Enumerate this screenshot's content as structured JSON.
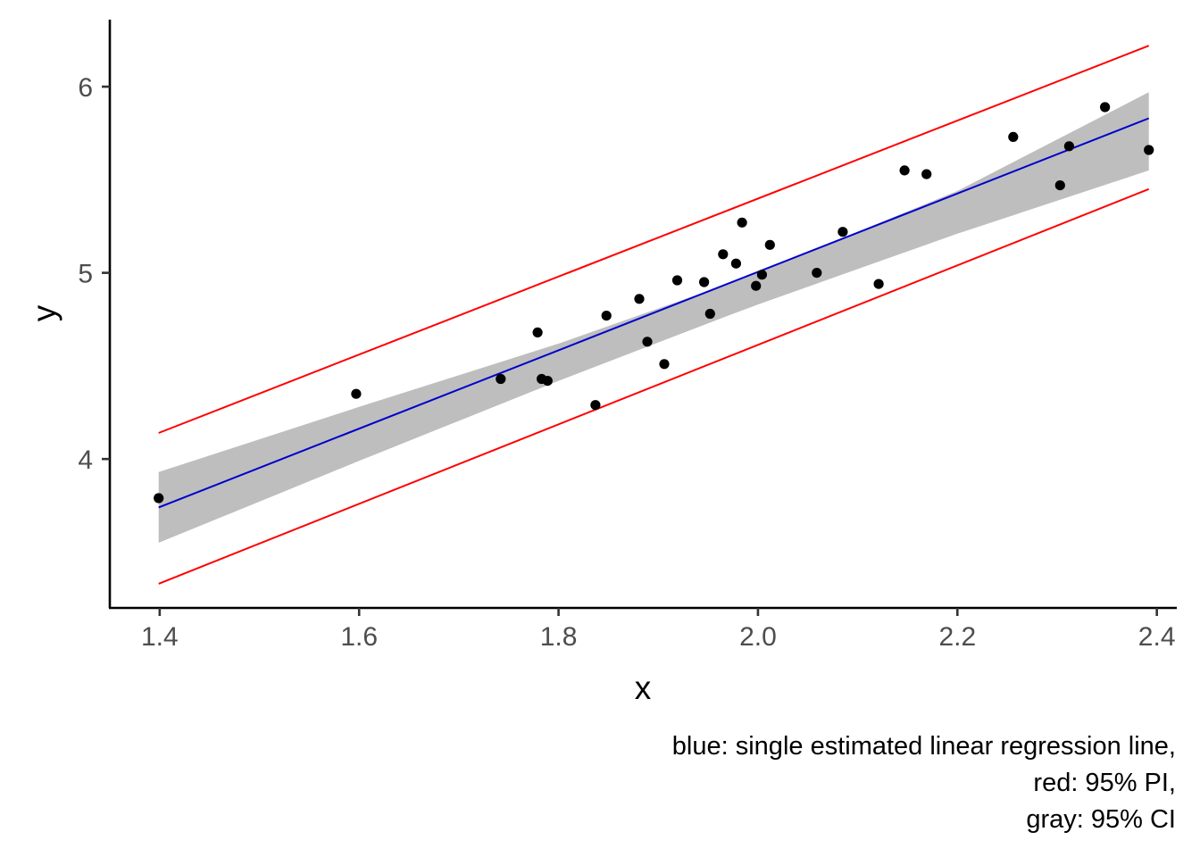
{
  "chart_data": {
    "type": "scatter",
    "xlabel": "x",
    "ylabel": "y",
    "xlim": [
      1.35,
      2.42
    ],
    "ylim": [
      3.2,
      6.36
    ],
    "x_ticks": [
      1.4,
      1.6,
      1.8,
      2.0,
      2.2,
      2.4
    ],
    "x_tick_labels": [
      "1.4",
      "1.6",
      "1.8",
      "2.0",
      "2.2",
      "2.4"
    ],
    "y_ticks": [
      4,
      5,
      6
    ],
    "y_tick_labels": [
      "4",
      "5",
      "6"
    ],
    "grid": false,
    "points": [
      {
        "x": 1.399,
        "y": 3.79
      },
      {
        "x": 1.597,
        "y": 4.35
      },
      {
        "x": 1.742,
        "y": 4.43
      },
      {
        "x": 1.779,
        "y": 4.68
      },
      {
        "x": 1.783,
        "y": 4.43
      },
      {
        "x": 1.789,
        "y": 4.42
      },
      {
        "x": 1.837,
        "y": 4.29
      },
      {
        "x": 1.848,
        "y": 4.77
      },
      {
        "x": 1.881,
        "y": 4.86
      },
      {
        "x": 1.889,
        "y": 4.63
      },
      {
        "x": 1.906,
        "y": 4.51
      },
      {
        "x": 1.919,
        "y": 4.96
      },
      {
        "x": 1.946,
        "y": 4.95
      },
      {
        "x": 1.952,
        "y": 4.78
      },
      {
        "x": 1.965,
        "y": 5.1
      },
      {
        "x": 1.978,
        "y": 5.05
      },
      {
        "x": 1.984,
        "y": 5.27
      },
      {
        "x": 1.998,
        "y": 4.93
      },
      {
        "x": 2.004,
        "y": 4.99
      },
      {
        "x": 2.012,
        "y": 5.15
      },
      {
        "x": 2.059,
        "y": 5.0
      },
      {
        "x": 2.085,
        "y": 5.22
      },
      {
        "x": 2.121,
        "y": 4.94
      },
      {
        "x": 2.147,
        "y": 5.55
      },
      {
        "x": 2.169,
        "y": 5.53
      },
      {
        "x": 2.256,
        "y": 5.73
      },
      {
        "x": 2.303,
        "y": 5.47
      },
      {
        "x": 2.312,
        "y": 5.68
      },
      {
        "x": 2.348,
        "y": 5.89
      },
      {
        "x": 2.392,
        "y": 5.66
      }
    ],
    "regression_line": {
      "x": [
        1.399,
        2.392
      ],
      "y": [
        3.74,
        5.83
      ],
      "color": "#0000cc"
    },
    "ci_band": {
      "x": [
        1.399,
        1.6,
        1.8,
        1.97,
        2.0,
        2.1,
        2.2,
        2.392
      ],
      "lower": [
        3.55,
        3.99,
        4.42,
        4.77,
        4.83,
        5.02,
        5.21,
        5.55
      ],
      "upper": [
        3.93,
        4.28,
        4.62,
        4.94,
        5.0,
        5.22,
        5.44,
        5.97
      ],
      "color": "#bebebe"
    },
    "pi_upper": {
      "x": [
        1.399,
        2.392
      ],
      "y": [
        4.14,
        6.22
      ],
      "color": "#ff0000"
    },
    "pi_lower": {
      "x": [
        1.399,
        2.392
      ],
      "y": [
        3.33,
        5.45
      ],
      "color": "#ff0000"
    },
    "caption": [
      "blue: single estimated linear regression line,",
      "red: 95% PI,",
      "gray: 95% CI"
    ]
  }
}
